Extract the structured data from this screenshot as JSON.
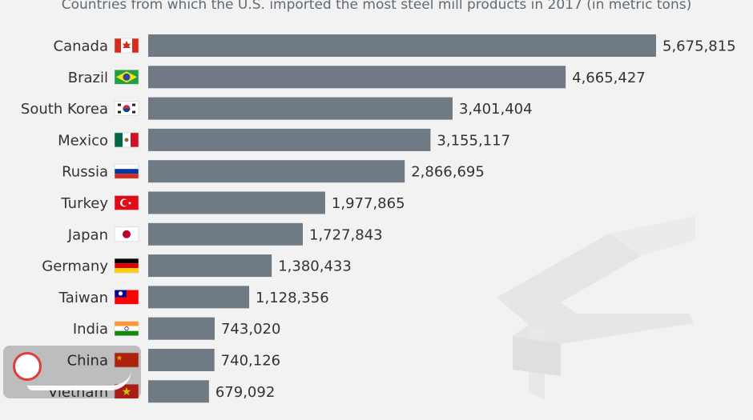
{
  "title": "Countries from which the U.S. imported the most steel mill products in 2017 (in metric tons)",
  "colors": {
    "bar": "#6f7a84",
    "background": "#f2f2f2"
  },
  "chart_data": {
    "type": "bar",
    "orientation": "horizontal",
    "title": "Countries from which the U.S. imported the most steel mill products in 2017 (in metric tons)",
    "categories": [
      "Canada",
      "Brazil",
      "South Korea",
      "Mexico",
      "Russia",
      "Turkey",
      "Japan",
      "Germany",
      "Taiwan",
      "India",
      "China",
      "Vietnam"
    ],
    "values": [
      5675815,
      4665427,
      3401404,
      3155117,
      2866695,
      1977865,
      1727843,
      1380433,
      1128356,
      743020,
      740126,
      679092
    ],
    "value_labels": [
      "5,675,815",
      "4,665,427",
      "3,401,404",
      "3,155,117",
      "2,866,695",
      "1,977,865",
      "1,727,843",
      "1,380,433",
      "1,128,356",
      "743,020",
      "740,126",
      "679,092"
    ],
    "flag_icons": [
      "canada-flag-icon",
      "brazil-flag-icon",
      "south-korea-flag-icon",
      "mexico-flag-icon",
      "russia-flag-icon",
      "turkey-flag-icon",
      "japan-flag-icon",
      "germany-flag-icon",
      "taiwan-flag-icon",
      "india-flag-icon",
      "china-flag-icon",
      "vietnam-flag-icon"
    ],
    "xlim": [
      0,
      5675815
    ],
    "grid": false,
    "legend": "none"
  }
}
